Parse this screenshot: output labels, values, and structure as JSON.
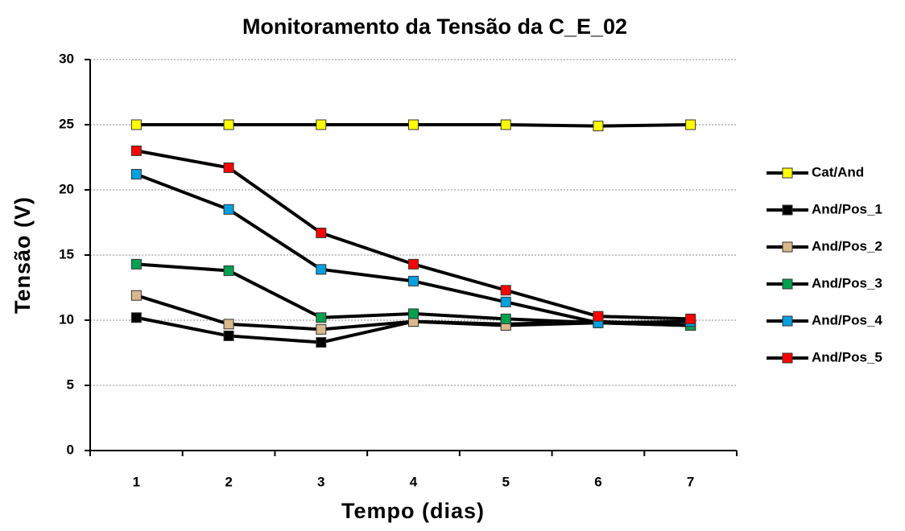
{
  "chart_data": {
    "type": "line",
    "title": "Monitoramento da Tensão da C_E_02",
    "xlabel": "Tempo (dias)",
    "ylabel": "Tensão (V)",
    "categories": [
      "1",
      "2",
      "3",
      "4",
      "5",
      "6",
      "7"
    ],
    "line_color": "#000000",
    "series": [
      {
        "name": "Cat/And",
        "color": "#ffff00",
        "values": [
          25,
          25,
          25,
          25,
          25,
          24.9,
          25
        ]
      },
      {
        "name": "And/Pos_1",
        "color": "#000000",
        "values": [
          10.2,
          8.8,
          8.3,
          9.9,
          9.7,
          9.9,
          9.6
        ]
      },
      {
        "name": "And/Pos_2",
        "color": "#d9b98c",
        "values": [
          11.9,
          9.7,
          9.3,
          9.9,
          9.6,
          9.8,
          9.6
        ]
      },
      {
        "name": "And/Pos_3",
        "color": "#00a050",
        "values": [
          14.3,
          13.8,
          10.2,
          10.5,
          10.1,
          9.8,
          9.6
        ]
      },
      {
        "name": "And/Pos_4",
        "color": "#00a0e0",
        "values": [
          21.2,
          18.5,
          13.9,
          13.0,
          11.4,
          9.8,
          9.9
        ]
      },
      {
        "name": "And/Pos_5",
        "color": "#ff0000",
        "values": [
          23.0,
          21.7,
          16.7,
          14.3,
          12.3,
          10.3,
          10.1
        ]
      }
    ],
    "ylim": [
      0,
      30
    ],
    "yticks": [
      0,
      5,
      10,
      15,
      20,
      25,
      30
    ],
    "grid": true,
    "legend": "right"
  }
}
